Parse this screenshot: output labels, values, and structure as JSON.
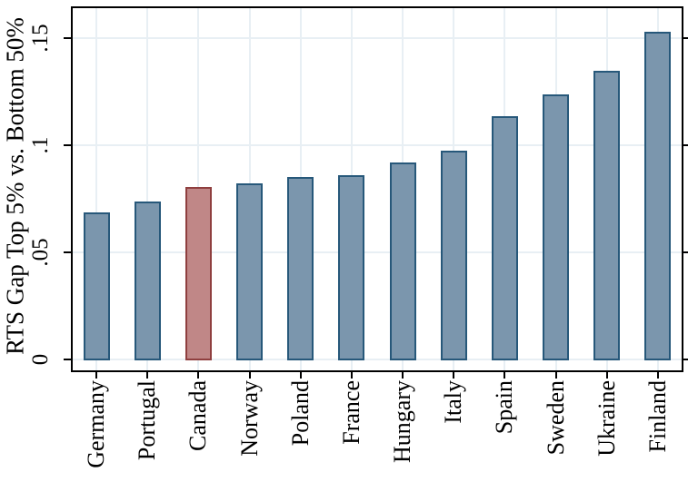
{
  "chart_data": {
    "type": "bar",
    "title": "",
    "xlabel": "",
    "ylabel": "RTS Gap Top 5% vs. Bottom 50%",
    "categories": [
      "Germany",
      "Portugal",
      "Canada",
      "Norway",
      "Poland",
      "France",
      "Hungary",
      "Italy",
      "Spain",
      "Sweden",
      "Ukraine",
      "Finland"
    ],
    "values": [
      0.069,
      0.074,
      0.081,
      0.0825,
      0.0855,
      0.0865,
      0.0925,
      0.098,
      0.114,
      0.124,
      0.135,
      0.1535
    ],
    "highlight_category": "Canada",
    "ytick_labels": [
      "0",
      ".05",
      ".1",
      ".15"
    ],
    "ytick_values": [
      0,
      0.05,
      0.1,
      0.15
    ],
    "ylim": [
      -0.006,
      0.165
    ],
    "grid": true,
    "legend": "none",
    "label_rotation_degrees": -90,
    "colors": {
      "bar_fill": "#7b96ad",
      "bar_border": "#27587a",
      "highlight_fill": "#c08787",
      "highlight_border": "#8f3f3f",
      "gridline": "#e8eff4",
      "axis": "#000000",
      "background": "#ffffff"
    }
  }
}
